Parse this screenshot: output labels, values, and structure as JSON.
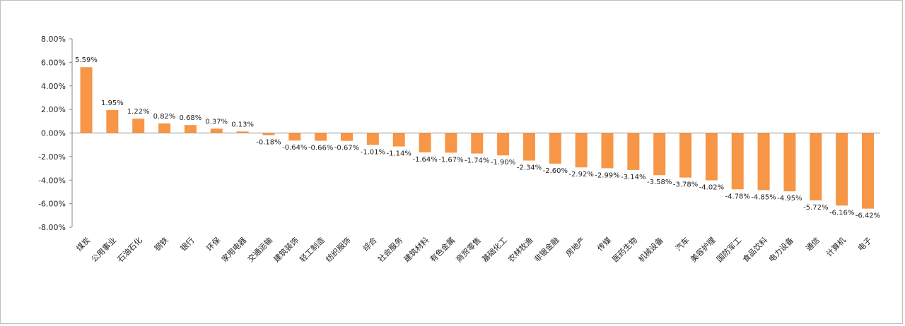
{
  "chart_data": {
    "type": "bar",
    "title": "",
    "xlabel": "",
    "ylabel": "",
    "ylim": [
      -8,
      8
    ],
    "y_ticks": [
      "8.00%",
      "6.00%",
      "4.00%",
      "2.00%",
      "0.00%",
      "-2.00%",
      "-4.00%",
      "-6.00%",
      "-8.00%"
    ],
    "bar_color": "#F79646",
    "grid": false,
    "categories": [
      "煤炭",
      "公用事业",
      "石油石化",
      "钢铁",
      "银行",
      "环保",
      "家用电器",
      "交通运输",
      "建筑装饰",
      "轻工制造",
      "纺织服饰",
      "综合",
      "社会服务",
      "建筑材料",
      "有色金属",
      "商贸零售",
      "基础化工",
      "农林牧渔",
      "非银金融",
      "房地产",
      "传媒",
      "医药生物",
      "机械设备",
      "汽车",
      "美容护理",
      "国防军工",
      "食品饮料",
      "电力设备",
      "通信",
      "计算机",
      "电子"
    ],
    "values": [
      5.59,
      1.95,
      1.22,
      0.82,
      0.68,
      0.37,
      0.13,
      -0.18,
      -0.64,
      -0.66,
      -0.67,
      -1.01,
      -1.14,
      -1.64,
      -1.67,
      -1.74,
      -1.9,
      -2.34,
      -2.6,
      -2.92,
      -2.99,
      -3.14,
      -3.58,
      -3.78,
      -4.02,
      -4.78,
      -4.85,
      -4.95,
      -5.72,
      -6.16,
      -6.42
    ],
    "data_labels": [
      "5.59%",
      "1.95%",
      "1.22%",
      "0.82%",
      "0.68%",
      "0.37%",
      "0.13%",
      "-0.18%",
      "-0.64%",
      "-0.66%",
      "-0.67%",
      "-1.01%",
      "-1.14%",
      "-1.64%",
      "-1.67%",
      "-1.74%",
      "-1.90%",
      "-2.34%",
      "-2.60%",
      "-2.92%",
      "-2.99%",
      "-3.14%",
      "-3.58%",
      "-3.78%",
      "-4.02%",
      "-4.78%",
      "-4.85%",
      "-4.95%",
      "-5.72%",
      "-6.16%",
      "-6.42%"
    ]
  }
}
